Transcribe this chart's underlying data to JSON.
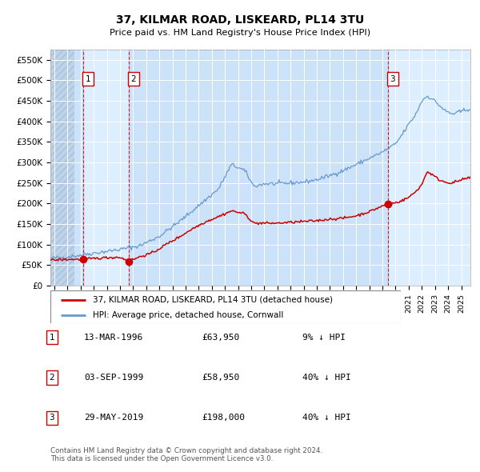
{
  "title": "37, KILMAR ROAD, LISKEARD, PL14 3TU",
  "subtitle": "Price paid vs. HM Land Registry's House Price Index (HPI)",
  "xlim_start": 1993.7,
  "xlim_end": 2025.7,
  "ylim_bottom": 0,
  "ylim_top": 575000,
  "yticks": [
    0,
    50000,
    100000,
    150000,
    200000,
    250000,
    300000,
    350000,
    400000,
    450000,
    500000,
    550000
  ],
  "ytick_labels": [
    "£0",
    "£50K",
    "£100K",
    "£150K",
    "£200K",
    "£250K",
    "£300K",
    "£350K",
    "£400K",
    "£450K",
    "£500K",
    "£550K"
  ],
  "transactions": [
    {
      "num": 1,
      "date_x": 1996.2,
      "price": 63950,
      "label": "1"
    },
    {
      "num": 2,
      "date_x": 1999.67,
      "price": 58950,
      "label": "2"
    },
    {
      "num": 3,
      "date_x": 2019.41,
      "price": 198000,
      "label": "3"
    }
  ],
  "legend_entries": [
    {
      "color": "#cc0000",
      "label": "37, KILMAR ROAD, LISKEARD, PL14 3TU (detached house)"
    },
    {
      "color": "#6699cc",
      "label": "HPI: Average price, detached house, Cornwall"
    }
  ],
  "table_rows": [
    {
      "num": "1",
      "date": "13-MAR-1996",
      "price": "£63,950",
      "hpi": "9% ↓ HPI"
    },
    {
      "num": "2",
      "date": "03-SEP-1999",
      "price": "£58,950",
      "hpi": "40% ↓ HPI"
    },
    {
      "num": "3",
      "date": "29-MAY-2019",
      "price": "£198,000",
      "hpi": "40% ↓ HPI"
    }
  ],
  "footnote": "Contains HM Land Registry data © Crown copyright and database right 2024.\nThis data is licensed under the Open Government Licence v3.0.",
  "bg_color": "#ddeeff",
  "grid_color": "#ffffff",
  "hpi_line_color": "#6699cc",
  "price_line_color": "#cc0000",
  "vline_color": "#cc0000",
  "hatch_end": 1995.5,
  "shade1_start": 1993.7,
  "shade1_end": 1996.2,
  "shade2_start": 1999.67,
  "shade2_end": 2019.41
}
